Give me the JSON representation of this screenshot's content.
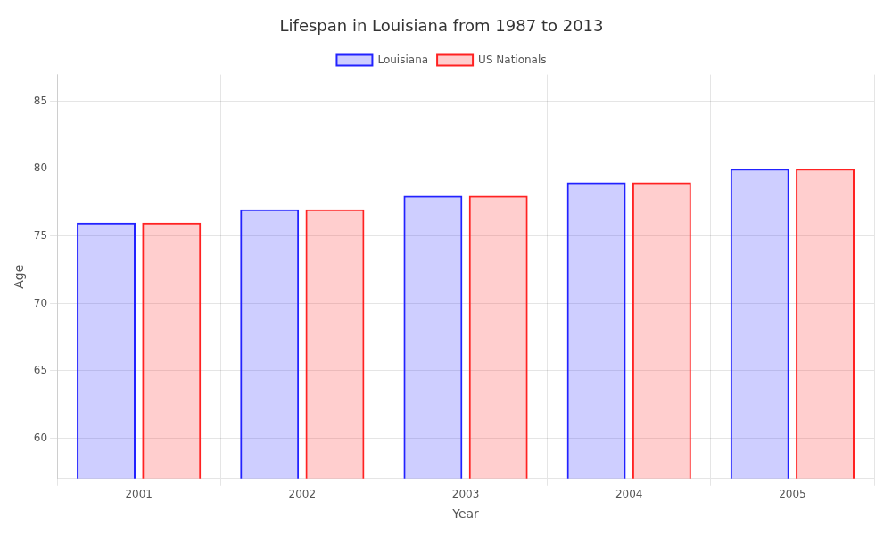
{
  "chart_data": {
    "type": "bar",
    "title": "Lifespan in Louisiana from 1987 to 2013",
    "x_label": "Year",
    "y_label": "Age",
    "categories": [
      "2001",
      "2002",
      "2003",
      "2004",
      "2005"
    ],
    "series": [
      {
        "name": "Louisiana",
        "color": "#2222ff",
        "values": [
          76,
          77,
          78,
          79,
          80
        ]
      },
      {
        "name": "US Nationals",
        "color": "#ff2222",
        "values": [
          76,
          77,
          78,
          79,
          80
        ]
      }
    ],
    "ylim": [
      57,
      87
    ],
    "yticks": [
      60,
      65,
      70,
      75,
      80,
      85
    ],
    "grid": true,
    "legend": "top"
  }
}
